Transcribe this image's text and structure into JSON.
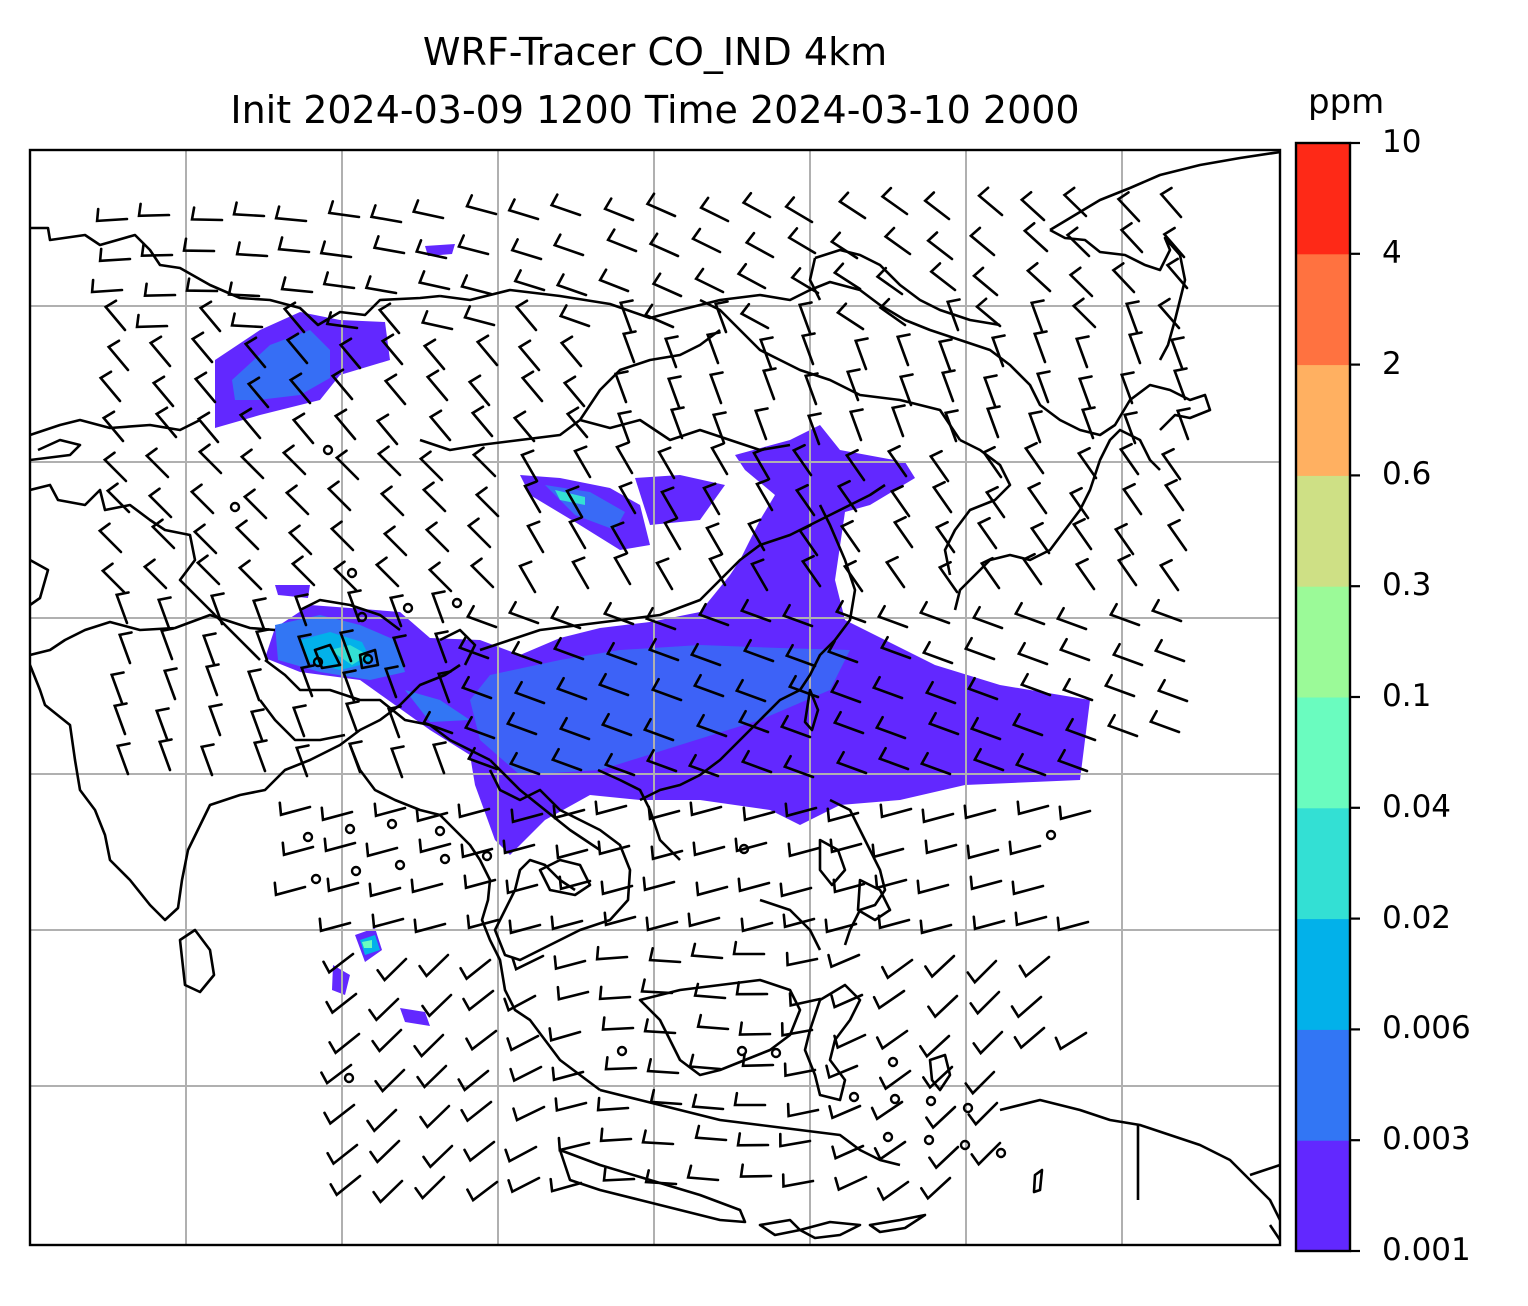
{
  "title": {
    "line1": "WRF-Tracer CO_IND 4km",
    "line2": "Init 2024-03-09 1200 Time 2024-03-10 2000"
  },
  "colorbar": {
    "units": "ppm",
    "levels": [
      "0.001",
      "0.003",
      "0.006",
      "0.02",
      "0.04",
      "0.1",
      "0.3",
      "0.6",
      "2",
      "4",
      "10"
    ],
    "colors": [
      "#6228ff",
      "#3276f4",
      "#02b1ea",
      "#33e0d4",
      "#6afcbf",
      "#9bfa98",
      "#cee085",
      "#ffb061",
      "#ff7240",
      "#fe2917"
    ]
  },
  "map": {
    "graticule": true,
    "wind_barbs": true,
    "coastlines": true
  }
}
